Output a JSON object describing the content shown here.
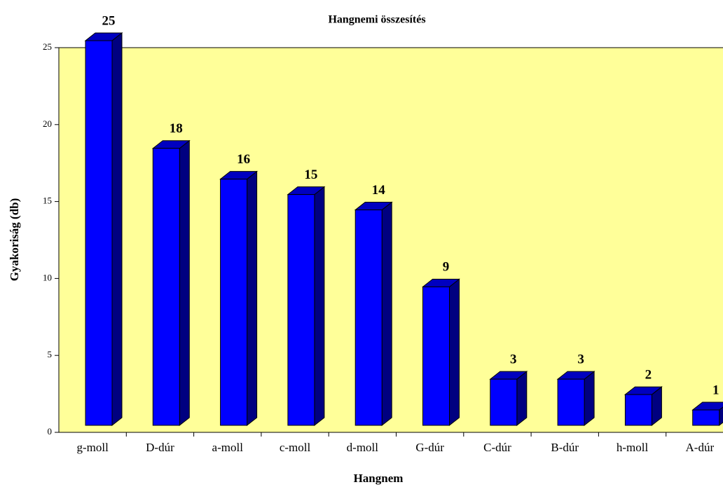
{
  "chart_data": {
    "type": "bar",
    "title": "Hangnemi összesítés",
    "x_label": "Hangnem",
    "y_label": "Gyakoriság (db)",
    "categories": [
      "g-moll",
      "D-dúr",
      "a-moll",
      "c-moll",
      "d-moll",
      "G-dúr",
      "C-dúr",
      "B-dúr",
      "h-moll",
      "A-dúr"
    ],
    "values": [
      25,
      18,
      16,
      15,
      14,
      9,
      3,
      3,
      2,
      1
    ],
    "color": "#0000ff",
    "ylim": [
      0,
      25
    ],
    "yticks": [
      0,
      5,
      10,
      15,
      20,
      25
    ],
    "grid": false
  }
}
